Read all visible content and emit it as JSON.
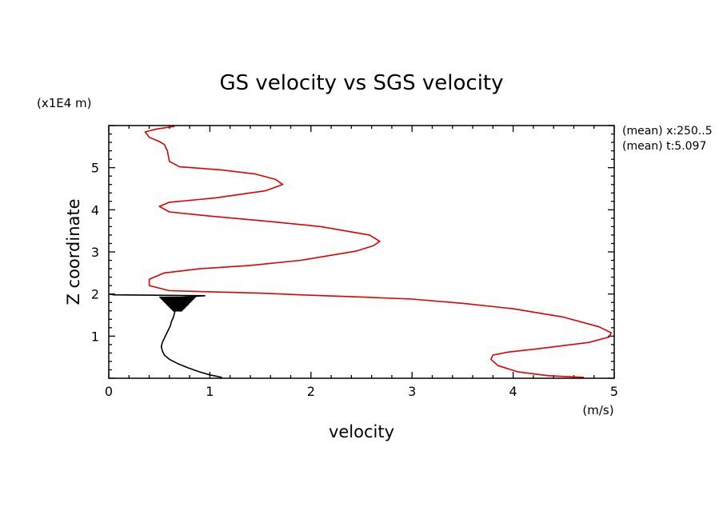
{
  "chart_data": {
    "type": "line",
    "title": "GS velocity vs SGS velocity",
    "xlabel": "velocity",
    "ylabel": "Z coordinate",
    "x_unit": "(m/s)",
    "y_unit": "(x1E4 m)",
    "xlim": [
      0,
      5
    ],
    "ylim": [
      0,
      6
    ],
    "x_ticks": [
      "0",
      "1",
      "2",
      "3",
      "4",
      "5"
    ],
    "y_ticks": [
      "1",
      "2",
      "3",
      "4",
      "5"
    ],
    "annotations": [
      "(mean) x:250..5",
      "(mean) t:5.097"
    ],
    "series": [
      {
        "color": "#e00000",
        "points": [
          [
            4.7,
            0.02
          ],
          [
            4.35,
            0.06
          ],
          [
            4.05,
            0.15
          ],
          [
            3.85,
            0.3
          ],
          [
            3.78,
            0.45
          ],
          [
            3.8,
            0.55
          ],
          [
            3.95,
            0.62
          ],
          [
            4.25,
            0.7
          ],
          [
            4.75,
            0.85
          ],
          [
            4.95,
            0.98
          ],
          [
            4.97,
            1.08
          ],
          [
            4.85,
            1.22
          ],
          [
            4.5,
            1.45
          ],
          [
            4.0,
            1.65
          ],
          [
            3.5,
            1.78
          ],
          [
            3.0,
            1.88
          ],
          [
            2.5,
            1.93
          ],
          [
            2.0,
            1.97
          ],
          [
            1.5,
            2.02
          ],
          [
            0.6,
            2.08
          ],
          [
            0.4,
            2.2
          ],
          [
            0.4,
            2.35
          ],
          [
            0.55,
            2.5
          ],
          [
            0.9,
            2.6
          ],
          [
            1.4,
            2.68
          ],
          [
            1.9,
            2.8
          ],
          [
            2.2,
            2.92
          ],
          [
            2.45,
            3.02
          ],
          [
            2.62,
            3.15
          ],
          [
            2.68,
            3.25
          ],
          [
            2.58,
            3.4
          ],
          [
            2.1,
            3.6
          ],
          [
            1.6,
            3.72
          ],
          [
            1.0,
            3.85
          ],
          [
            0.6,
            3.95
          ],
          [
            0.5,
            4.08
          ],
          [
            0.6,
            4.18
          ],
          [
            1.05,
            4.28
          ],
          [
            1.55,
            4.45
          ],
          [
            1.72,
            4.6
          ],
          [
            1.65,
            4.72
          ],
          [
            1.45,
            4.85
          ],
          [
            1.1,
            4.95
          ],
          [
            0.7,
            5.02
          ],
          [
            0.6,
            5.15
          ],
          [
            0.58,
            5.4
          ],
          [
            0.55,
            5.55
          ],
          [
            0.5,
            5.62
          ],
          [
            0.4,
            5.72
          ],
          [
            0.36,
            5.85
          ],
          [
            0.48,
            5.92
          ],
          [
            0.65,
            5.98
          ]
        ]
      },
      {
        "color": "#000000",
        "points": [
          [
            1.12,
            0.02
          ],
          [
            1.0,
            0.08
          ],
          [
            0.9,
            0.15
          ],
          [
            0.78,
            0.25
          ],
          [
            0.68,
            0.35
          ],
          [
            0.6,
            0.45
          ],
          [
            0.55,
            0.55
          ],
          [
            0.53,
            0.65
          ],
          [
            0.52,
            0.75
          ],
          [
            0.53,
            0.85
          ],
          [
            0.55,
            0.95
          ],
          [
            0.57,
            1.05
          ],
          [
            0.59,
            1.15
          ],
          [
            0.61,
            1.25
          ],
          [
            0.62,
            1.35
          ],
          [
            0.64,
            1.45
          ],
          [
            0.65,
            1.55
          ],
          [
            0.66,
            1.65
          ],
          [
            0.67,
            1.75
          ],
          [
            0.68,
            1.85
          ],
          [
            0.7,
            1.92
          ],
          [
            0.95,
            1.96
          ],
          [
            0.5,
            1.97
          ],
          [
            0.05,
            1.98
          ],
          [
            0.0,
            2.0
          ]
        ]
      }
    ]
  }
}
